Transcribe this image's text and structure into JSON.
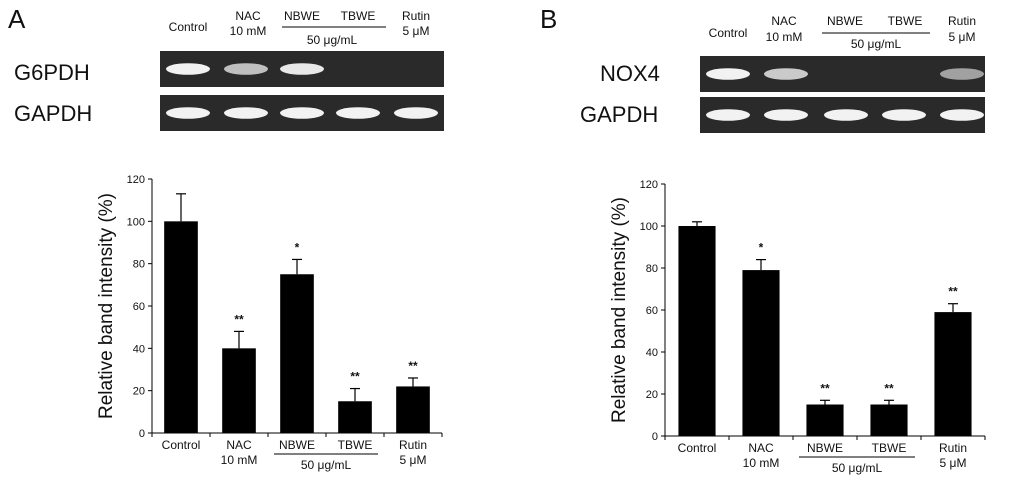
{
  "colors": {
    "bar": "#000000",
    "gel_background": "#2a2a2a",
    "band": "#f2f2f2",
    "axis": "#000000"
  },
  "panels": [
    {
      "letter": "A",
      "gel": {
        "rows": [
          {
            "label": "G6PDH",
            "band_intensity": [
              1.0,
              0.75,
              0.95,
              0.0,
              0.0
            ]
          },
          {
            "label": "GAPDH",
            "band_intensity": [
              1.0,
              1.0,
              1.0,
              1.0,
              1.0
            ]
          }
        ],
        "lanes": [
          {
            "line1": "Control",
            "line2": ""
          },
          {
            "line1": "NAC",
            "line2": "10 mM"
          },
          {
            "line1": "NBWE",
            "line2": ""
          },
          {
            "line1": "TBWE",
            "line2": ""
          },
          {
            "line1": "Rutin",
            "line2": "5 μM"
          }
        ],
        "group_label": "50 μg/mL"
      },
      "chart_data": {
        "type": "bar",
        "categories": [
          "Control",
          "NAC",
          "NBWE",
          "TBWE",
          "Rutin"
        ],
        "category_sublabels": [
          "",
          "10 mM",
          "",
          "",
          "5 μM"
        ],
        "group_label": "50 μg/mL",
        "values": [
          100,
          40,
          75,
          15,
          22
        ],
        "errors": [
          13,
          8,
          7,
          6,
          4
        ],
        "significance": [
          "",
          "**",
          "*",
          "**",
          "**"
        ],
        "ylabel": "Relative band intensity (%)",
        "ylim": [
          0,
          120
        ],
        "yticks": [
          "0",
          "20",
          "40",
          "60",
          "80",
          "100",
          "120"
        ],
        "grid": false
      }
    },
    {
      "letter": "B",
      "gel": {
        "rows": [
          {
            "label": "NOX4",
            "band_intensity": [
              1.0,
              0.8,
              0.0,
              0.0,
              0.6
            ]
          },
          {
            "label": "GAPDH",
            "band_intensity": [
              1.0,
              1.0,
              1.0,
              1.0,
              1.0
            ]
          }
        ],
        "lanes": [
          {
            "line1": "Control",
            "line2": ""
          },
          {
            "line1": "NAC",
            "line2": "10 mM"
          },
          {
            "line1": "NBWE",
            "line2": ""
          },
          {
            "line1": "TBWE",
            "line2": ""
          },
          {
            "line1": "Rutin",
            "line2": "5 μM"
          }
        ],
        "group_label": "50 μg/mL"
      },
      "chart_data": {
        "type": "bar",
        "categories": [
          "Control",
          "NAC",
          "NBWE",
          "TBWE",
          "Rutin"
        ],
        "category_sublabels": [
          "",
          "10 mM",
          "",
          "",
          "5 μM"
        ],
        "group_label": "50 μg/mL",
        "values": [
          100,
          79,
          15,
          15,
          59
        ],
        "errors": [
          2,
          5,
          2,
          2,
          4
        ],
        "significance": [
          "",
          "*",
          "**",
          "**",
          "**"
        ],
        "ylabel": "Relative band intensity (%)",
        "ylim": [
          0,
          120
        ],
        "yticks": [
          "0",
          "20",
          "40",
          "60",
          "80",
          "100",
          "120"
        ],
        "grid": false
      }
    }
  ]
}
